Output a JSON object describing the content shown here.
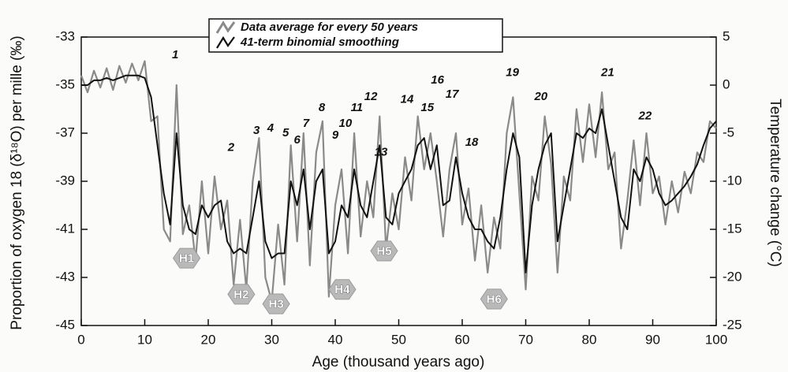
{
  "chart_data": {
    "type": "line",
    "x_label": "Age (thousand years ago)",
    "y_label": "Proportion of oxygen 18 (δ¹⁸O) per mille (‰)",
    "y2_label": "Temperature change (°C)",
    "x": [
      0,
      1,
      2,
      3,
      4,
      5,
      6,
      7,
      8,
      9,
      10,
      11,
      12,
      13,
      14,
      15,
      16,
      17,
      18,
      19,
      20,
      21,
      22,
      23,
      24,
      25,
      26,
      27,
      28,
      29,
      30,
      31,
      32,
      33,
      34,
      35,
      36,
      37,
      38,
      39,
      40,
      41,
      42,
      43,
      44,
      45,
      46,
      47,
      48,
      49,
      50,
      51,
      52,
      53,
      54,
      55,
      56,
      57,
      58,
      59,
      60,
      61,
      62,
      63,
      64,
      65,
      66,
      67,
      68,
      69,
      70,
      71,
      72,
      73,
      74,
      75,
      76,
      77,
      78,
      79,
      80,
      81,
      82,
      83,
      84,
      85,
      86,
      87,
      88,
      89,
      90,
      91,
      92,
      93,
      94,
      95,
      96,
      97,
      98,
      99,
      100
    ],
    "series": [
      {
        "name": "Data average for every 50 years",
        "color": "#8a8a8a",
        "values": [
          -34.6,
          -35.3,
          -34.4,
          -35.1,
          -34.3,
          -35.2,
          -34.2,
          -34.9,
          -34.1,
          -34.8,
          -34.0,
          -36.5,
          -36.3,
          -41.0,
          -41.5,
          -35.0,
          -41.2,
          -40.0,
          -42.3,
          -39.0,
          -42.0,
          -38.8,
          -41.0,
          -39.8,
          -43.3,
          -40.6,
          -43.5,
          -39.0,
          -37.2,
          -43.0,
          -44.0,
          -40.8,
          -43.3,
          -37.5,
          -41.5,
          -37.0,
          -42.5,
          -37.8,
          -36.5,
          -43.8,
          -40.0,
          -38.5,
          -42.0,
          -37.0,
          -41.3,
          -39.0,
          -40.5,
          -36.3,
          -41.8,
          -39.5,
          -41.0,
          -38.0,
          -39.8,
          -36.3,
          -38.5,
          -37.0,
          -39.0,
          -41.3,
          -38.5,
          -37.0,
          -40.8,
          -39.3,
          -42.3,
          -40.0,
          -42.8,
          -40.5,
          -41.8,
          -37.0,
          -35.5,
          -39.5,
          -43.5,
          -38.8,
          -39.8,
          -36.3,
          -38.3,
          -42.8,
          -38.8,
          -39.8,
          -36.0,
          -38.2,
          -35.8,
          -38.0,
          -35.3,
          -38.5,
          -37.8,
          -41.8,
          -39.8,
          -37.3,
          -40.0,
          -37.0,
          -39.5,
          -38.8,
          -40.8,
          -39.0,
          -40.3,
          -38.6,
          -39.5,
          -37.8,
          -38.2,
          -36.5,
          -36.8
        ]
      },
      {
        "name": "41-term binomial smoothing",
        "color": "#111111",
        "values": [
          -35.0,
          -35.0,
          -34.8,
          -34.8,
          -34.7,
          -34.8,
          -34.7,
          -34.6,
          -34.6,
          -34.6,
          -34.7,
          -35.5,
          -37.5,
          -39.5,
          -40.8,
          -37.0,
          -40.0,
          -41.0,
          -41.2,
          -40.0,
          -40.5,
          -40.0,
          -39.8,
          -41.5,
          -42.0,
          -41.8,
          -42.0,
          -40.5,
          -39.0,
          -41.5,
          -42.2,
          -42.0,
          -42.0,
          -39.0,
          -40.0,
          -38.5,
          -41.0,
          -39.0,
          -38.5,
          -42.0,
          -41.5,
          -40.0,
          -40.5,
          -38.5,
          -40.0,
          -40.5,
          -39.0,
          -37.5,
          -40.5,
          -40.8,
          -39.5,
          -39.0,
          -38.5,
          -37.5,
          -37.2,
          -38.5,
          -37.5,
          -40.0,
          -39.8,
          -38.0,
          -39.5,
          -40.5,
          -41.0,
          -41.0,
          -41.5,
          -41.8,
          -40.5,
          -38.5,
          -37.0,
          -38.0,
          -42.8,
          -40.0,
          -38.5,
          -37.5,
          -37.0,
          -41.5,
          -40.0,
          -38.5,
          -37.0,
          -37.2,
          -36.8,
          -37.0,
          -36.0,
          -37.5,
          -39.0,
          -40.5,
          -41.0,
          -38.5,
          -39.0,
          -38.0,
          -38.5,
          -39.5,
          -40.0,
          -39.8,
          -39.5,
          -39.2,
          -38.8,
          -38.3,
          -37.5,
          -36.8,
          -36.5
        ]
      }
    ],
    "xlim": [
      0,
      100
    ],
    "xticks": [
      0,
      10,
      20,
      30,
      40,
      50,
      60,
      70,
      80,
      90,
      100
    ],
    "ylim": [
      -45,
      -33
    ],
    "yticks": [
      -45,
      -43,
      -41,
      -39,
      -37,
      -35,
      -33
    ],
    "y2lim": [
      -25,
      5
    ],
    "y2ticks": [
      -25,
      -20,
      -15,
      -10,
      -5,
      0,
      5
    ],
    "annotations": [
      {
        "text": "1",
        "x": 14.8,
        "y": -33.75
      },
      {
        "text": "2",
        "x": 23.6,
        "y": -37.6
      },
      {
        "text": "3",
        "x": 27.6,
        "y": -36.9
      },
      {
        "text": "4",
        "x": 29.8,
        "y": -36.8
      },
      {
        "text": "5",
        "x": 32.2,
        "y": -37.0
      },
      {
        "text": "6",
        "x": 34.0,
        "y": -37.3
      },
      {
        "text": "7",
        "x": 35.4,
        "y": -36.6
      },
      {
        "text": "8",
        "x": 37.9,
        "y": -35.95
      },
      {
        "text": "9",
        "x": 40.0,
        "y": -37.1
      },
      {
        "text": "10",
        "x": 41.6,
        "y": -36.6
      },
      {
        "text": "11",
        "x": 43.4,
        "y": -35.95
      },
      {
        "text": "12",
        "x": 45.6,
        "y": -35.5
      },
      {
        "text": "13",
        "x": 47.2,
        "y": -37.8
      },
      {
        "text": "14",
        "x": 51.3,
        "y": -35.6
      },
      {
        "text": "15",
        "x": 54.5,
        "y": -35.95
      },
      {
        "text": "16",
        "x": 56.1,
        "y": -34.8
      },
      {
        "text": "17",
        "x": 58.4,
        "y": -35.4
      },
      {
        "text": "18",
        "x": 61.5,
        "y": -37.4
      },
      {
        "text": "19",
        "x": 67.9,
        "y": -34.5
      },
      {
        "text": "20",
        "x": 72.4,
        "y": -35.5
      },
      {
        "text": "21",
        "x": 82.9,
        "y": -34.5
      },
      {
        "text": "22",
        "x": 88.8,
        "y": -36.3
      }
    ],
    "heinrich_events": [
      {
        "text": "H1",
        "x": 16.6,
        "y": -42.2
      },
      {
        "text": "H2",
        "x": 25.2,
        "y": -43.7
      },
      {
        "text": "H3",
        "x": 30.7,
        "y": -44.1
      },
      {
        "text": "H4",
        "x": 41.1,
        "y": -43.5
      },
      {
        "text": "H5",
        "x": 47.7,
        "y": -41.9
      },
      {
        "text": "H6",
        "x": 65.0,
        "y": -43.9
      }
    ]
  }
}
